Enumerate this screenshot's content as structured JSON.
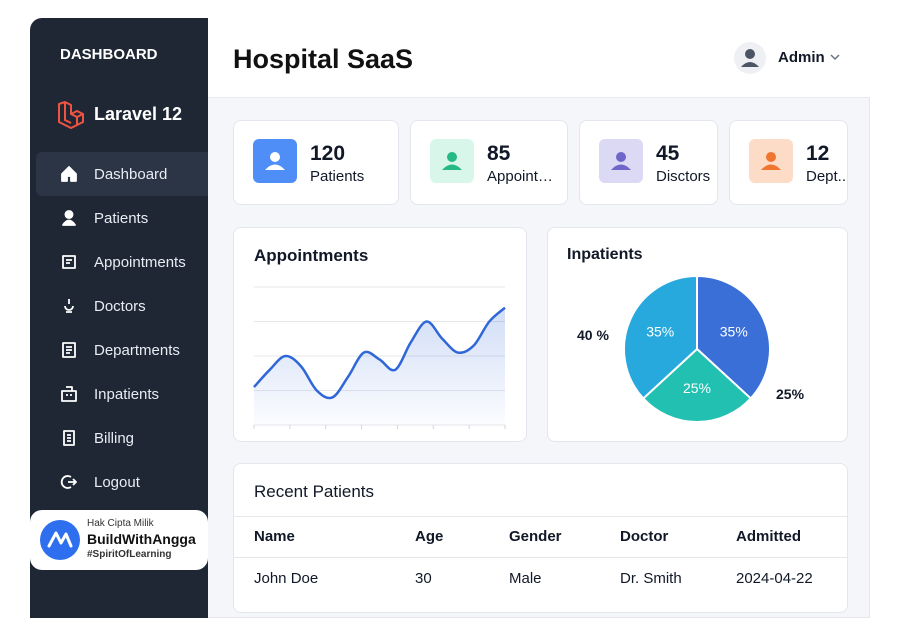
{
  "sidebar": {
    "title": "DASHBOARD",
    "brand": "Laravel 12",
    "active": 0,
    "menu": [
      "Dashboard",
      "Patients",
      "Appointments",
      "Doctors",
      "Departments",
      "Inpatients",
      "Billing",
      "Logout"
    ]
  },
  "watermark": {
    "line1": "Hak Cipta Milik",
    "brand": "BuildWithAngga",
    "tag": "#SpiritOfLearning"
  },
  "header": {
    "title": "Hospital SaaS",
    "user": "Admin"
  },
  "stats": [
    {
      "value": 120,
      "label": "Patients",
      "color": "#4f8ef7",
      "bg": "#4f8ef7"
    },
    {
      "value": 85,
      "label": "Appoint…",
      "color": "#25b985",
      "bg": "#d8f6ea"
    },
    {
      "value": 45,
      "label": "Disctors",
      "color": "#6f66c9",
      "bg": "#dcd9f4"
    },
    {
      "value": 12,
      "label": "Dept..",
      "color": "#ef7530",
      "bg": "#fddcc7"
    }
  ],
  "chart_data": [
    {
      "type": "line",
      "title": "Appointments",
      "values": [
        1.1,
        1.6,
        2.0,
        1.7,
        1.0,
        0.8,
        1.4,
        2.1,
        1.9,
        1.6,
        2.4,
        3.0,
        2.5,
        2.1,
        2.3,
        3.0,
        3.4
      ],
      "color": "#2f67d8",
      "ylim": [
        0,
        4
      ],
      "grid": true
    },
    {
      "type": "pie",
      "title": "Inpatients",
      "values": [
        35,
        25,
        35
      ],
      "value_labels": [
        "35%",
        "25%",
        "35%"
      ],
      "colors": [
        "#3a6fd8",
        "#22c0b0",
        "#27a9de"
      ],
      "annotations": [
        "40 %",
        "25%"
      ]
    }
  ],
  "table": {
    "title": "Recent Patients",
    "columns": [
      "Name",
      "Age",
      "Gender",
      "Doctor",
      "Admitted"
    ],
    "rows": [
      [
        "John Doe",
        30,
        "Male",
        "Dr. Smith",
        "2024-04-22"
      ]
    ]
  }
}
